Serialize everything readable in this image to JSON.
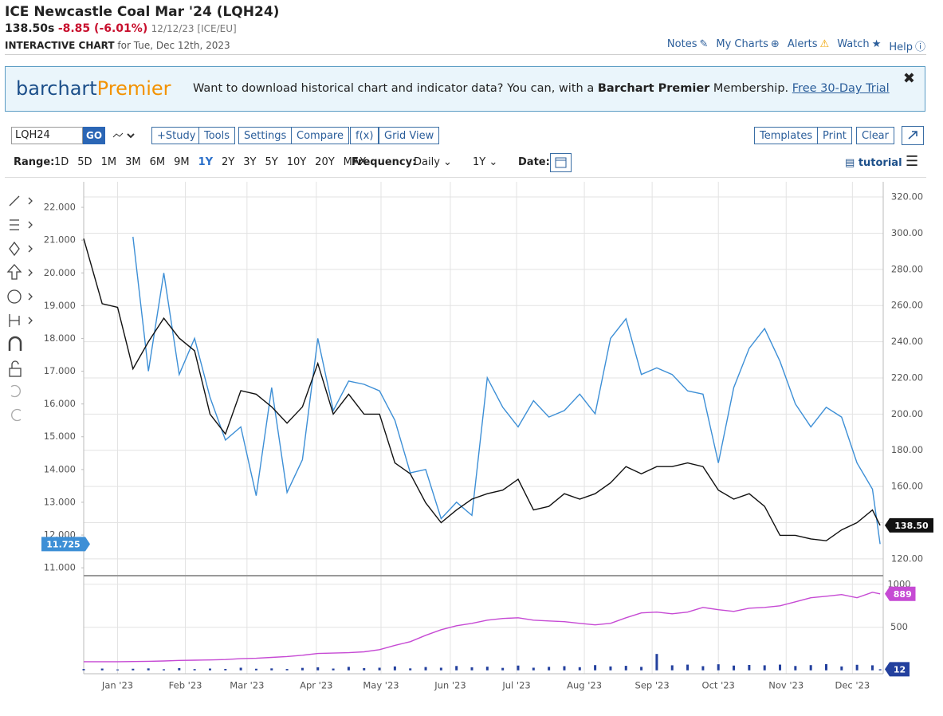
{
  "header": {
    "title": "ICE Newcastle Coal Mar '24 (LQH24)",
    "price": "138.50s",
    "change": "-8.85 (-6.01%)",
    "date_source": "12/12/23 [ICE/EU]",
    "chart_label": "INTERACTIVE CHART",
    "chart_date": "for Tue, Dec 12th, 2023",
    "links": [
      "Notes",
      "My Charts",
      "Alerts",
      "Watch",
      "Help"
    ]
  },
  "banner": {
    "logo_a": "barchart",
    "logo_b": "Premier",
    "text_a": "Want to download historical chart and indicator data? You can, with a",
    "text_bold": "Barchart Premier",
    "text_b": "Membership.",
    "link": "Free 30-Day Trial",
    "close": "✖"
  },
  "toolbar": {
    "symbol": "LQH24",
    "go": "GO",
    "left_buttons": [
      "+Study",
      "Tools",
      "Settings",
      "Compare",
      "f(x)",
      "Grid View"
    ],
    "right_buttons": [
      "Templates",
      "Print",
      "Clear"
    ]
  },
  "range_bar": {
    "range_label": "Range:",
    "ranges": [
      "1D",
      "5D",
      "1M",
      "3M",
      "6M",
      "9M",
      "1Y",
      "2Y",
      "3Y",
      "5Y",
      "10Y",
      "20Y",
      "MAX"
    ],
    "selected_index": 6,
    "frequency_label": "Frequency:",
    "frequency": "Daily",
    "period": "1Y",
    "date_label": "Date:",
    "tutorial": "tutorial"
  },
  "chart_data": [
    {
      "type": "line",
      "grid": true,
      "x": [
        -2.2,
        -1,
        0,
        1,
        2,
        3,
        4,
        5,
        6,
        7,
        8,
        9,
        10,
        11,
        12,
        13,
        14,
        15,
        16,
        17,
        18,
        19,
        20,
        21,
        22,
        23,
        24,
        25,
        26,
        27,
        28,
        29,
        30,
        31,
        32,
        33,
        34,
        35,
        36,
        37,
        38,
        39,
        40,
        41,
        42,
        43,
        44,
        45,
        46,
        47,
        48,
        49,
        49.5
      ],
      "xlim": [
        -2.2,
        49.7
      ],
      "ylim": [
        10.76,
        22.78
      ],
      "yticks": [
        {
          "value": 11,
          "label": "11.000"
        },
        {
          "value": 12,
          "label": "12.000"
        },
        {
          "value": 13,
          "label": "13.000"
        },
        {
          "value": 14,
          "label": "14.000"
        },
        {
          "value": 15,
          "label": "15.000"
        },
        {
          "value": 16,
          "label": "16.000"
        },
        {
          "value": 17,
          "label": "17.000"
        },
        {
          "value": 18,
          "label": "18.000"
        },
        {
          "value": 19,
          "label": "19.000"
        },
        {
          "value": 20,
          "label": "20.000"
        },
        {
          "value": 21,
          "label": "21.000"
        },
        {
          "value": 22,
          "label": "22.000"
        }
      ],
      "y2lim": [
        110.7,
        328.4
      ],
      "y2ticks": [
        {
          "value": 120,
          "label": "120.00"
        },
        {
          "value": 140,
          "label": "140.00"
        },
        {
          "value": 160,
          "label": "160.00"
        },
        {
          "value": 180,
          "label": "180.00"
        },
        {
          "value": 200,
          "label": "200.00"
        },
        {
          "value": 220,
          "label": "220.00"
        },
        {
          "value": 240,
          "label": "240.00"
        },
        {
          "value": 260,
          "label": "260.00"
        },
        {
          "value": 280,
          "label": "280.00"
        },
        {
          "value": 300,
          "label": "300.00"
        },
        {
          "value": 320,
          "label": "320.00"
        }
      ],
      "series": [
        {
          "color": "#3d8fd6",
          "axis": "y",
          "badge": 11.725,
          "values": [
            null,
            null,
            null,
            21.1,
            17.0,
            20.0,
            16.9,
            18.0,
            16.2,
            14.9,
            15.3,
            13.2,
            16.5,
            13.3,
            14.3,
            18.0,
            15.8,
            16.7,
            16.6,
            16.4,
            15.5,
            13.9,
            14.0,
            12.5,
            13.0,
            12.6,
            16.8,
            15.9,
            15.3,
            16.1,
            15.6,
            15.8,
            16.3,
            15.7,
            18.0,
            18.6,
            16.9,
            17.1,
            16.9,
            16.4,
            16.3,
            14.2,
            16.5,
            17.7,
            18.3,
            17.3,
            16.0,
            15.3,
            15.9,
            15.6,
            14.2,
            13.4,
            11.725
          ]
        },
        {
          "color": "#111111",
          "axis": "y2",
          "badge": {
            "value": 138.5,
            "label": "138.50"
          },
          "values": [
            297,
            261,
            259,
            225,
            240,
            253,
            242,
            235,
            200,
            189,
            213,
            211,
            204,
            195,
            204,
            228,
            200,
            211,
            200,
            200,
            173,
            167,
            151,
            140,
            147,
            153,
            156,
            158,
            164,
            147,
            149,
            156,
            153,
            156,
            162,
            171,
            167,
            171,
            171,
            173,
            171,
            158,
            153,
            156,
            149,
            133,
            133,
            131,
            130,
            136,
            140,
            147,
            138.5
          ]
        }
      ]
    },
    {
      "type": "line",
      "x": [
        -2.2,
        -1,
        0,
        1,
        2,
        3,
        4,
        5,
        6,
        7,
        8,
        9,
        10,
        11,
        12,
        13,
        14,
        15,
        16,
        17,
        18,
        19,
        20,
        21,
        22,
        23,
        24,
        25,
        26,
        27,
        28,
        29,
        30,
        31,
        32,
        33,
        34,
        35,
        36,
        37,
        38,
        39,
        40,
        41,
        42,
        43,
        44,
        45,
        46,
        47,
        48,
        49,
        49.5
      ],
      "xlim": [
        -2.2,
        49.7
      ],
      "xticks": [
        {
          "value": 0,
          "label": "Jan '23"
        },
        {
          "value": 4.4,
          "label": "Feb '23"
        },
        {
          "value": 8.4,
          "label": "Mar '23"
        },
        {
          "value": 12.9,
          "label": "Apr '23"
        },
        {
          "value": 17.1,
          "label": "May '23"
        },
        {
          "value": 21.6,
          "label": "Jun '23"
        },
        {
          "value": 25.9,
          "label": "Jul '23"
        },
        {
          "value": 30.3,
          "label": "Aug '23"
        },
        {
          "value": 34.7,
          "label": "Sep '23"
        },
        {
          "value": 39,
          "label": "Oct '23"
        },
        {
          "value": 43.4,
          "label": "Nov '23"
        },
        {
          "value": 47.7,
          "label": "Dec '23"
        }
      ],
      "ylim": [
        -40,
        1100
      ],
      "yticks": [
        500,
        1000
      ],
      "series": [
        {
          "color": "#c64ad4",
          "badge": 889,
          "values": [
            100,
            100,
            100,
            102,
            105,
            108,
            115,
            118,
            120,
            125,
            135,
            140,
            150,
            160,
            175,
            195,
            200,
            205,
            215,
            240,
            290,
            333,
            407,
            472,
            518,
            546,
            583,
            602,
            611,
            583,
            574,
            565,
            546,
            528,
            546,
            611,
            667,
            676,
            657,
            676,
            731,
            704,
            685,
            722,
            731,
            750,
            796,
            843,
            861,
            880,
            843,
            907,
            889
          ]
        },
        {
          "color": "#23409e",
          "type": "bar",
          "badge": 12,
          "values": [
            15,
            20,
            10,
            18,
            22,
            12,
            25,
            14,
            20,
            16,
            30,
            18,
            22,
            15,
            28,
            35,
            20,
            40,
            25,
            30,
            45,
            22,
            38,
            30,
            50,
            35,
            42,
            28,
            55,
            30,
            40,
            48,
            36,
            60,
            45,
            52,
            40,
            190,
            58,
            66,
            48,
            70,
            55,
            62,
            58,
            66,
            50,
            60,
            72,
            45,
            64,
            58,
            12
          ]
        }
      ]
    }
  ]
}
